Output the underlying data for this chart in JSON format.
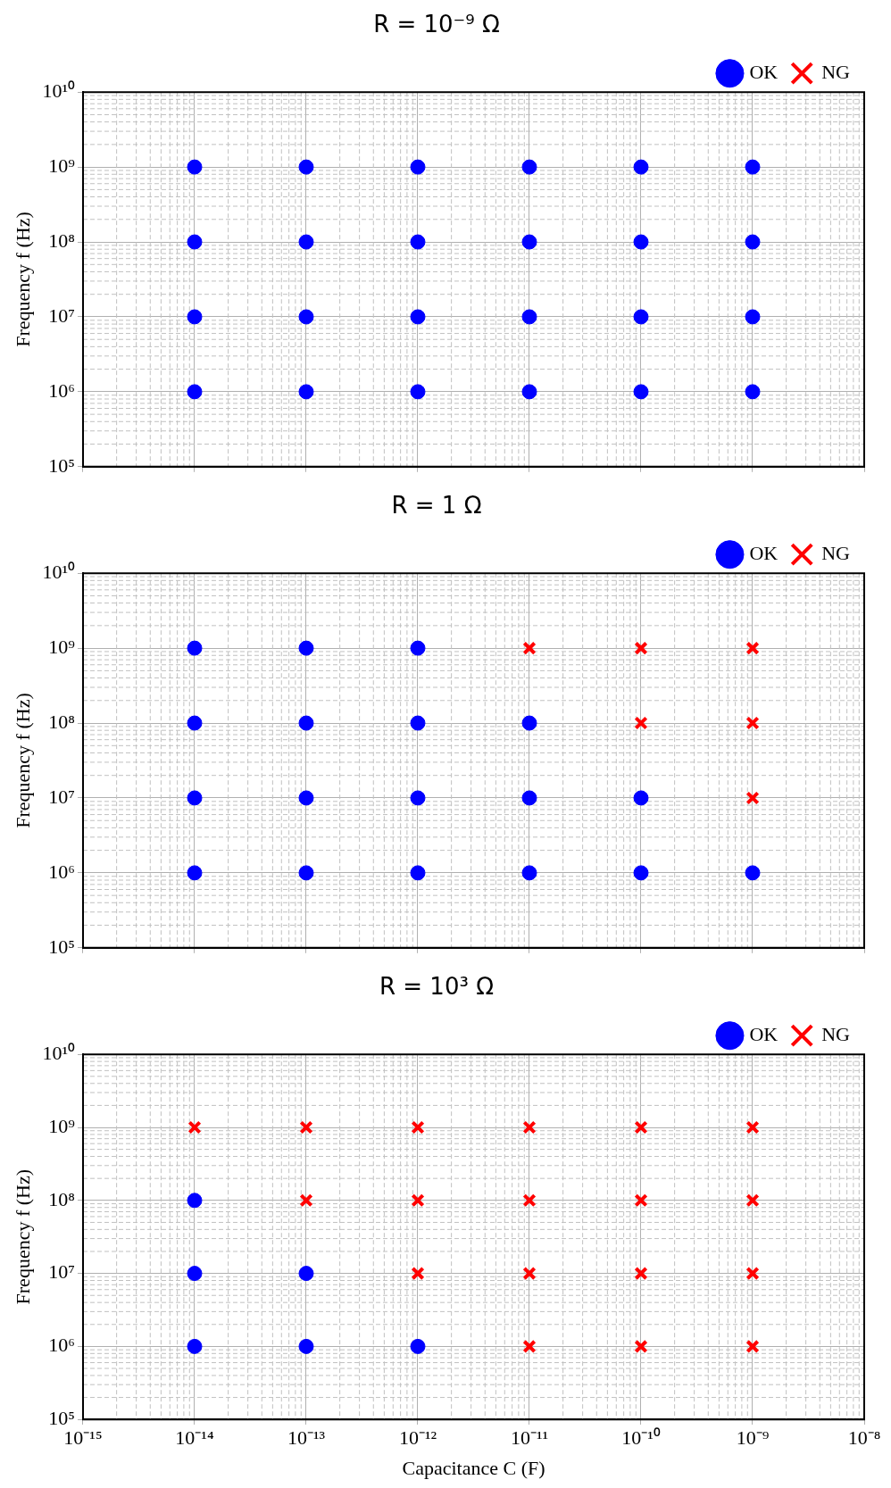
{
  "chart_data": [
    {
      "type": "scatter",
      "title": "R = 10⁻⁹ Ω",
      "ylabel": "Frequency f (Hz)",
      "log": "xy",
      "grid": true,
      "legend": "top right",
      "tick_labels": "y",
      "xlim": [
        1e-15,
        1e-08
      ],
      "xticks": [
        {
          "value": 1e-15,
          "label": null
        },
        {
          "value": 1e-14,
          "label": null
        },
        {
          "value": 1e-13,
          "label": null
        },
        {
          "value": 1e-12,
          "label": null
        },
        {
          "value": 1e-11,
          "label": null
        },
        {
          "value": 1e-10,
          "label": null
        },
        {
          "value": 1e-09,
          "label": null
        },
        {
          "value": 1e-08,
          "label": null
        }
      ],
      "ylim": [
        100000.0,
        10000000000.0
      ],
      "yticks": [
        {
          "value": 100000.0,
          "label": "10⁵"
        },
        {
          "value": 1000000.0,
          "label": "10⁶"
        },
        {
          "value": 10000000.0,
          "label": "10⁷"
        },
        {
          "value": 100000000.0,
          "label": "10⁸"
        },
        {
          "value": 1000000000.0,
          "label": "10⁹"
        },
        {
          "value": 10000000000.0,
          "label": "10¹⁰"
        }
      ],
      "series": [
        {
          "name": "OK",
          "color": "#0000ff",
          "marker": "circle",
          "x": [
            1e-14,
            1e-14,
            1e-14,
            1e-14,
            1e-13,
            1e-13,
            1e-13,
            1e-13,
            1e-12,
            1e-12,
            1e-12,
            1e-12,
            1e-11,
            1e-11,
            1e-11,
            1e-11,
            1e-10,
            1e-10,
            1e-10,
            1e-10,
            1e-09,
            1e-09,
            1e-09,
            1e-09
          ],
          "values": [
            1000000.0,
            10000000.0,
            100000000.0,
            1000000000.0,
            1000000.0,
            10000000.0,
            100000000.0,
            1000000000.0,
            1000000.0,
            10000000.0,
            100000000.0,
            1000000000.0,
            1000000.0,
            10000000.0,
            100000000.0,
            1000000000.0,
            1000000.0,
            10000000.0,
            100000000.0,
            1000000000.0,
            1000000.0,
            10000000.0,
            100000000.0,
            1000000000.0
          ]
        },
        {
          "name": "NG",
          "color": "#ff0000",
          "marker": "cross"
        }
      ]
    },
    {
      "type": "scatter",
      "title": "R = 1 Ω",
      "ylabel": "Frequency f (Hz)",
      "log": "xy",
      "grid": true,
      "legend": "top right",
      "tick_labels": "y",
      "xlim": [
        1e-15,
        1e-08
      ],
      "xticks": [
        {
          "value": 1e-15,
          "label": null
        },
        {
          "value": 1e-14,
          "label": null
        },
        {
          "value": 1e-13,
          "label": null
        },
        {
          "value": 1e-12,
          "label": null
        },
        {
          "value": 1e-11,
          "label": null
        },
        {
          "value": 1e-10,
          "label": null
        },
        {
          "value": 1e-09,
          "label": null
        },
        {
          "value": 1e-08,
          "label": null
        }
      ],
      "ylim": [
        100000.0,
        10000000000.0
      ],
      "yticks": [
        {
          "value": 100000.0,
          "label": "10⁵"
        },
        {
          "value": 1000000.0,
          "label": "10⁶"
        },
        {
          "value": 10000000.0,
          "label": "10⁷"
        },
        {
          "value": 100000000.0,
          "label": "10⁸"
        },
        {
          "value": 1000000000.0,
          "label": "10⁹"
        },
        {
          "value": 10000000000.0,
          "label": "10¹⁰"
        }
      ],
      "series": [
        {
          "name": "OK",
          "color": "#0000ff",
          "marker": "circle",
          "x": [
            1e-14,
            1e-14,
            1e-14,
            1e-14,
            1e-13,
            1e-13,
            1e-13,
            1e-13,
            1e-12,
            1e-12,
            1e-12,
            1e-12,
            1e-11,
            1e-11,
            1e-11,
            1e-10,
            1e-10,
            1e-09
          ],
          "values": [
            1000000.0,
            10000000.0,
            100000000.0,
            1000000000.0,
            1000000.0,
            10000000.0,
            100000000.0,
            1000000000.0,
            1000000.0,
            10000000.0,
            100000000.0,
            1000000000.0,
            1000000.0,
            10000000.0,
            100000000.0,
            1000000.0,
            10000000.0,
            1000000.0
          ]
        },
        {
          "name": "NG",
          "color": "#ff0000",
          "marker": "cross",
          "x": [
            1e-11,
            1e-10,
            1e-10,
            1e-09,
            1e-09,
            1e-09
          ],
          "values": [
            1000000000.0,
            100000000.0,
            1000000000.0,
            10000000.0,
            100000000.0,
            1000000000.0
          ]
        }
      ]
    },
    {
      "type": "scatter",
      "title": "R = 10³ Ω",
      "xlabel": "Capacitance C (F)",
      "ylabel": "Frequency f (Hz)",
      "log": "xy",
      "grid": true,
      "legend": "top right",
      "xlim": [
        1e-15,
        1e-08
      ],
      "xticks": [
        {
          "value": 1e-15,
          "label": "10⁻¹⁵"
        },
        {
          "value": 1e-14,
          "label": "10⁻¹⁴"
        },
        {
          "value": 1e-13,
          "label": "10⁻¹³"
        },
        {
          "value": 1e-12,
          "label": "10⁻¹²"
        },
        {
          "value": 1e-11,
          "label": "10⁻¹¹"
        },
        {
          "value": 1e-10,
          "label": "10⁻¹⁰"
        },
        {
          "value": 1e-09,
          "label": "10⁻⁹"
        },
        {
          "value": 1e-08,
          "label": "10⁻⁸"
        }
      ],
      "ylim": [
        100000.0,
        10000000000.0
      ],
      "yticks": [
        {
          "value": 100000.0,
          "label": "10⁵"
        },
        {
          "value": 1000000.0,
          "label": "10⁶"
        },
        {
          "value": 10000000.0,
          "label": "10⁷"
        },
        {
          "value": 100000000.0,
          "label": "10⁸"
        },
        {
          "value": 1000000000.0,
          "label": "10⁹"
        },
        {
          "value": 10000000000.0,
          "label": "10¹⁰"
        }
      ],
      "series": [
        {
          "name": "OK",
          "color": "#0000ff",
          "marker": "circle",
          "x": [
            1e-14,
            1e-14,
            1e-14,
            1e-13,
            1e-13,
            1e-12
          ],
          "values": [
            1000000.0,
            10000000.0,
            100000000.0,
            1000000.0,
            10000000.0,
            1000000.0
          ]
        },
        {
          "name": "NG",
          "color": "#ff0000",
          "marker": "cross",
          "x": [
            1e-14,
            1e-13,
            1e-13,
            1e-12,
            1e-12,
            1e-12,
            1e-11,
            1e-11,
            1e-11,
            1e-11,
            1e-10,
            1e-10,
            1e-10,
            1e-10,
            1e-09,
            1e-09,
            1e-09,
            1e-09
          ],
          "values": [
            1000000000.0,
            100000000.0,
            1000000000.0,
            10000000.0,
            100000000.0,
            1000000000.0,
            1000000.0,
            10000000.0,
            100000000.0,
            1000000000.0,
            1000000.0,
            10000000.0,
            100000000.0,
            1000000000.0,
            1000000.0,
            10000000.0,
            100000000.0,
            1000000000.0
          ]
        }
      ]
    }
  ]
}
